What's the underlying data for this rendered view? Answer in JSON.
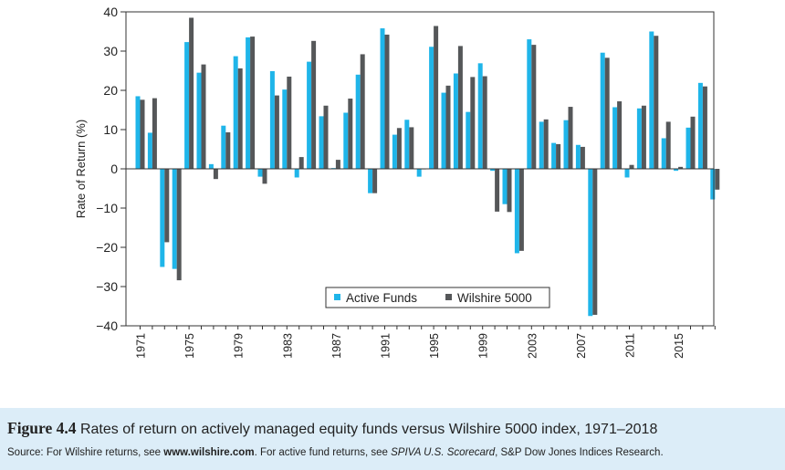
{
  "chart_data": {
    "type": "bar",
    "ylabel": "Rate of Return (%)",
    "xlabel": "",
    "ylim": [
      -40,
      40
    ],
    "yticks": [
      -40,
      -30,
      -20,
      -10,
      0,
      10,
      20,
      30,
      40
    ],
    "x_tick_labels": [
      "1971",
      "1975",
      "1979",
      "1983",
      "1987",
      "1991",
      "1995",
      "1999",
      "2003",
      "2007",
      "2011",
      "2015"
    ],
    "legend_position": "lower-right",
    "grid": false,
    "categories": [
      1971,
      1972,
      1973,
      1974,
      1975,
      1976,
      1977,
      1978,
      1979,
      1980,
      1981,
      1982,
      1983,
      1984,
      1985,
      1986,
      1987,
      1988,
      1989,
      1990,
      1991,
      1992,
      1993,
      1994,
      1995,
      1996,
      1997,
      1998,
      1999,
      2000,
      2001,
      2002,
      2003,
      2004,
      2005,
      2006,
      2007,
      2008,
      2009,
      2010,
      2011,
      2012,
      2013,
      2014,
      2015,
      2016,
      2017,
      2018
    ],
    "series": [
      {
        "name": "Active Funds",
        "color": "#1fb5e9",
        "values": [
          18.5,
          9.2,
          -25.0,
          -25.5,
          32.3,
          24.5,
          1.2,
          11.0,
          28.7,
          33.5,
          -2.0,
          24.9,
          20.2,
          -2.2,
          27.3,
          13.4,
          0.2,
          14.3,
          24.0,
          -6.2,
          35.8,
          8.7,
          12.5,
          -2.0,
          31.1,
          19.4,
          24.3,
          14.5,
          26.9,
          -0.5,
          -9.0,
          -21.5,
          33.0,
          12.0,
          6.6,
          12.4,
          6.1,
          -37.5,
          29.6,
          15.7,
          -2.2,
          15.4,
          35.0,
          7.8,
          -0.5,
          10.5,
          21.9,
          -7.8
        ]
      },
      {
        "name": "Wilshire 5000",
        "color": "#555759",
        "values": [
          17.6,
          18.0,
          -18.7,
          -28.4,
          38.5,
          26.6,
          -2.6,
          9.3,
          25.6,
          33.7,
          -3.8,
          18.7,
          23.5,
          3.0,
          32.6,
          16.1,
          2.3,
          17.9,
          29.2,
          -6.2,
          34.2,
          10.4,
          10.6,
          0.0,
          36.4,
          21.2,
          31.3,
          23.4,
          23.6,
          -10.9,
          -11.0,
          -20.9,
          31.6,
          12.6,
          6.3,
          15.8,
          5.6,
          -37.2,
          28.3,
          17.2,
          1.0,
          16.1,
          33.9,
          12.0,
          0.5,
          13.3,
          21.0,
          -5.3
        ]
      }
    ]
  },
  "caption": {
    "figure_label": "Figure 4.4",
    "figure_text": "Rates of return on actively managed equity funds versus Wilshire 5000 index, 1971–2018",
    "source_prefix": "Source: For Wilshire returns, see ",
    "source_link": "www.wilshire.com",
    "source_middle": ". For active fund returns, see ",
    "source_publication": "SPIVA U.S. Scorecard",
    "source_suffix": ", S&P Dow Jones Indices Research."
  }
}
